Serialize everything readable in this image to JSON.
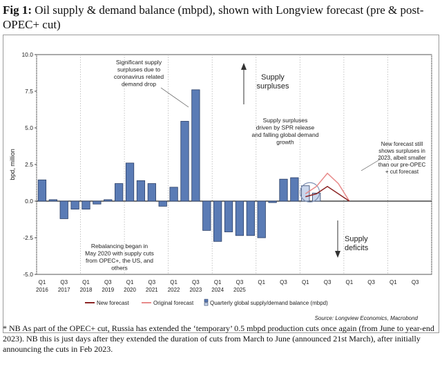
{
  "figure": {
    "label": "Fig 1:",
    "title": "Oil supply & demand balance (mbpd), shown with Longview forecast (pre & post-OPEC+ cut)"
  },
  "footnote": "* NB As part of the OPEC+ cut, Russia has extended the ‘temporary’ 0.5 mbpd production cuts once again (from June to year-end 2023). NB this is just days after they extended the duration of cuts from March to June (announced 21st March), after initially announcing the cuts in Feb 2023.",
  "source": "Source: Longview Economics, Macrobond",
  "colors": {
    "bar": "#5a7bb5",
    "bar_stroke": "#2b3f66",
    "bar_light": "#c9d6ec",
    "new_forecast": "#8b2323",
    "original_forecast": "#e88a8a",
    "grid": "#b5b5b5"
  },
  "chart_data": {
    "type": "bar",
    "ylabel": "bpd, million",
    "ylim": [
      -5.0,
      10.0
    ],
    "yticks": [
      "10.0",
      "7.5",
      "5.0",
      "2.5",
      "0.0",
      "-2.5",
      "-5.0"
    ],
    "ytick_values": [
      10.0,
      7.5,
      5.0,
      2.5,
      0.0,
      -2.5,
      -5.0
    ],
    "quarter_labels": [
      "Q1",
      "Q3",
      "Q1",
      "Q3",
      "Q1",
      "Q3",
      "Q1",
      "Q3",
      "Q1",
      "Q3",
      "Q1",
      "Q3",
      "Q1",
      "Q3",
      "Q1",
      "Q3",
      "Q1",
      "Q3"
    ],
    "year_labels": [
      "2016",
      "2017",
      "2018",
      "2019",
      "2020",
      "2021",
      "2022",
      "2023",
      "2024",
      "2025"
    ],
    "year_label_positions": [
      0,
      2,
      4,
      6,
      8,
      10,
      12,
      14,
      16,
      18
    ],
    "series": [
      {
        "name": "Quarterly global supply/demand balance (mbpd)",
        "values": [
          1.45,
          0.1,
          -1.2,
          -0.55,
          -0.55,
          -0.2,
          0.1,
          1.2,
          2.6,
          1.4,
          1.2,
          -0.35,
          0.95,
          5.45,
          7.6,
          -2.0,
          -2.75,
          -2.1,
          -2.35,
          -2.35,
          -2.5,
          -0.1,
          1.5,
          1.6,
          1.05,
          0.55
        ],
        "highlight_start": 24
      },
      {
        "name": "Original forecast",
        "x": [
          24,
          25,
          26,
          27,
          28
        ],
        "values": [
          0.5,
          1.0,
          1.9,
          1.2,
          0.0
        ]
      },
      {
        "name": "New forecast",
        "x": [
          24,
          25,
          26,
          27,
          28
        ],
        "values": [
          0.3,
          0.5,
          1.0,
          0.5,
          0.0
        ]
      }
    ],
    "annotations": [
      {
        "id": "covid",
        "lines": [
          "Significant supply",
          "surpluses due to",
          "coronavirus related",
          "demand drop"
        ]
      },
      {
        "id": "spr",
        "lines": [
          "Supply surpluses",
          "driven by SPR release",
          "and falling global demand",
          "growth"
        ]
      },
      {
        "id": "newfc",
        "lines": [
          "New forecast still",
          "shows surpluses in",
          "2023, albeit smaller",
          "than our pre-OPEC",
          "+ cut forecast"
        ]
      },
      {
        "id": "rebal",
        "lines": [
          "Rebalancing began in",
          "May 2020 with supply cuts",
          "from OPEC+, the US, and",
          "others"
        ]
      },
      {
        "id": "surplus",
        "lines": [
          "Supply",
          "surpluses"
        ]
      },
      {
        "id": "deficit",
        "lines": [
          "Supply",
          "deficits"
        ]
      }
    ],
    "legend": [
      "New forecast",
      "Original forecast",
      "Quarterly global supply/demand balance (mbpd)"
    ]
  }
}
